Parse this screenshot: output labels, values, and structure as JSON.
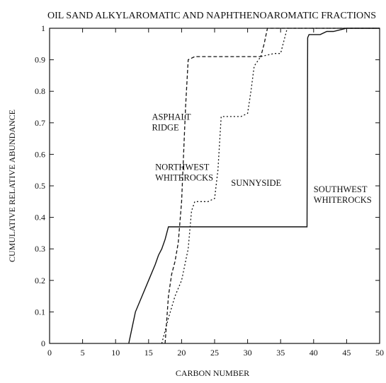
{
  "chart_data": {
    "type": "line",
    "title": "OIL SAND ALKYLAROMATIC AND NAPHTHENOAROMATIC FRACTIONS",
    "xlabel": "CARBON NUMBER",
    "ylabel": "CUMULATIVE RELATIVE ABUNDANCE",
    "xlim": [
      0,
      50
    ],
    "ylim": [
      0,
      1
    ],
    "xticks": [
      "0",
      "5",
      "10",
      "15",
      "20",
      "25",
      "30",
      "35",
      "40",
      "45",
      "50"
    ],
    "yticks": [
      "0",
      "0.1",
      "0.2",
      "0.3",
      "0.4",
      "0.5",
      "0.6",
      "0.7",
      "0.8",
      "0.9",
      "1"
    ],
    "grid": false,
    "series": [
      {
        "name": "SOUTHWEST WHITEROCKS",
        "dash": "solid",
        "x": [
          12,
          12.5,
          13,
          14,
          15,
          16,
          16.5,
          17,
          17.5,
          18,
          20,
          25,
          30,
          35,
          39,
          39.1,
          39.3,
          40,
          41,
          42,
          43,
          45,
          50
        ],
        "y": [
          0,
          0.05,
          0.1,
          0.15,
          0.2,
          0.25,
          0.28,
          0.3,
          0.33,
          0.37,
          0.37,
          0.37,
          0.37,
          0.37,
          0.37,
          0.97,
          0.98,
          0.98,
          0.98,
          0.99,
          0.99,
          1.0,
          1.0
        ]
      },
      {
        "name": "NORTHWEST WHITEROCKS",
        "dash": "dashed",
        "x": [
          17.5,
          18,
          18.5,
          19,
          19.5,
          20,
          20.3,
          20.6,
          21,
          22,
          25,
          28,
          30,
          32,
          32.5,
          33,
          35,
          36,
          50
        ],
        "y": [
          0,
          0.15,
          0.22,
          0.26,
          0.32,
          0.45,
          0.6,
          0.75,
          0.9,
          0.91,
          0.91,
          0.91,
          0.91,
          0.91,
          0.95,
          1.0,
          1.0,
          1.0,
          1.0
        ]
      },
      {
        "name": "SUNNYSIDE",
        "dash": "dotted",
        "x": [
          17,
          18,
          19,
          20,
          21,
          21.5,
          22,
          24,
          25,
          25.5,
          26,
          28,
          29,
          30,
          30.5,
          31,
          32,
          34,
          35,
          36,
          50
        ],
        "y": [
          0,
          0.08,
          0.15,
          0.2,
          0.3,
          0.42,
          0.45,
          0.45,
          0.46,
          0.55,
          0.72,
          0.72,
          0.72,
          0.73,
          0.8,
          0.88,
          0.91,
          0.92,
          0.92,
          1.0,
          1.0
        ]
      }
    ],
    "annotations": [
      {
        "lines": [
          "ASPHALT",
          "RIDGE"
        ],
        "x": 15.5,
        "y": 0.71
      },
      {
        "lines": [
          "NORTHWEST",
          "WHITEROCKS"
        ],
        "x": 16,
        "y": 0.55
      },
      {
        "lines": [
          "SUNNYSIDE"
        ],
        "x": 27.5,
        "y": 0.5
      },
      {
        "lines": [
          "SOUTHWEST",
          "WHITEROCKS"
        ],
        "x": 40,
        "y": 0.48
      }
    ]
  }
}
